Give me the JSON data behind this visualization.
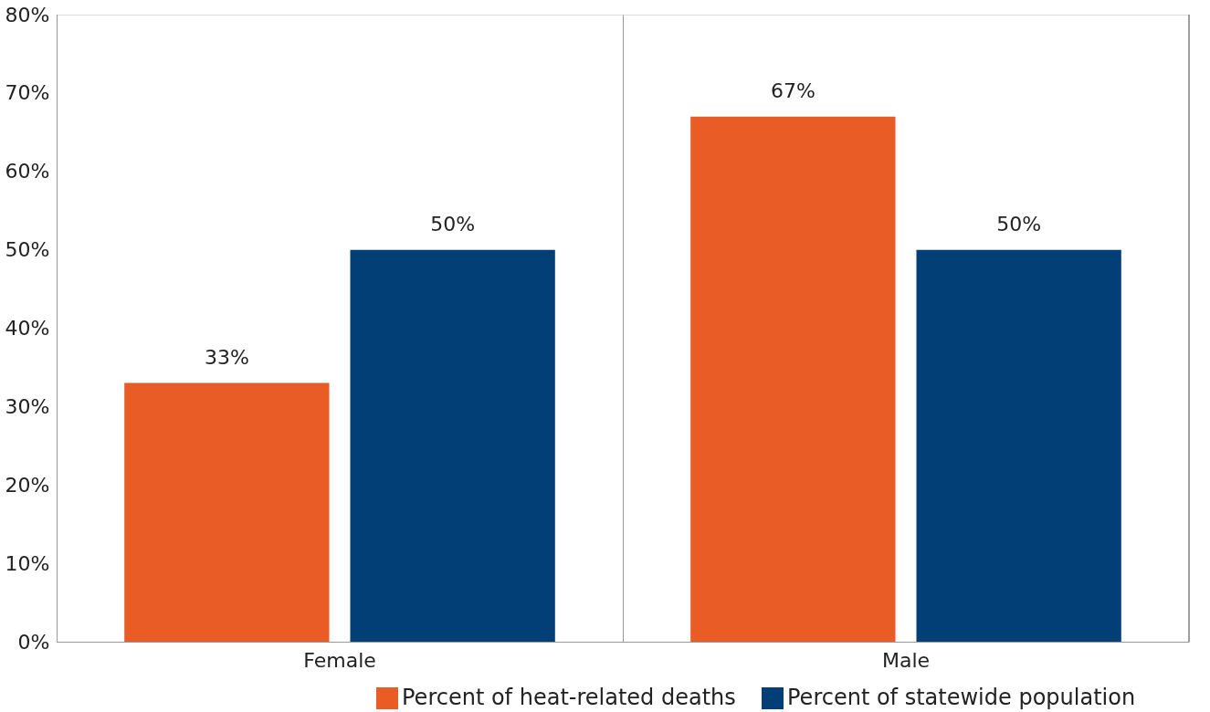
{
  "chart_data": {
    "type": "bar",
    "categories": [
      "Female",
      "Male"
    ],
    "series": [
      {
        "name": "Percent of heat-related deaths",
        "color": "#e95c26",
        "values": [
          33,
          67
        ],
        "value_labels": [
          "33%",
          "67%"
        ]
      },
      {
        "name": "Percent of statewide population",
        "color": "#033f77",
        "values": [
          50,
          50
        ],
        "value_labels": [
          "50%",
          "50%"
        ]
      }
    ],
    "ylim": [
      0,
      80
    ],
    "yticks": [
      {
        "value": 0,
        "label": "0%"
      },
      {
        "value": 10,
        "label": "10%"
      },
      {
        "value": 20,
        "label": "20%"
      },
      {
        "value": 30,
        "label": "30%"
      },
      {
        "value": 40,
        "label": "40%"
      },
      {
        "value": 50,
        "label": "50%"
      },
      {
        "value": 60,
        "label": "60%"
      },
      {
        "value": 70,
        "label": "70%"
      },
      {
        "value": 80,
        "label": "80%"
      }
    ],
    "grid": "x",
    "legend": "bottom right"
  }
}
